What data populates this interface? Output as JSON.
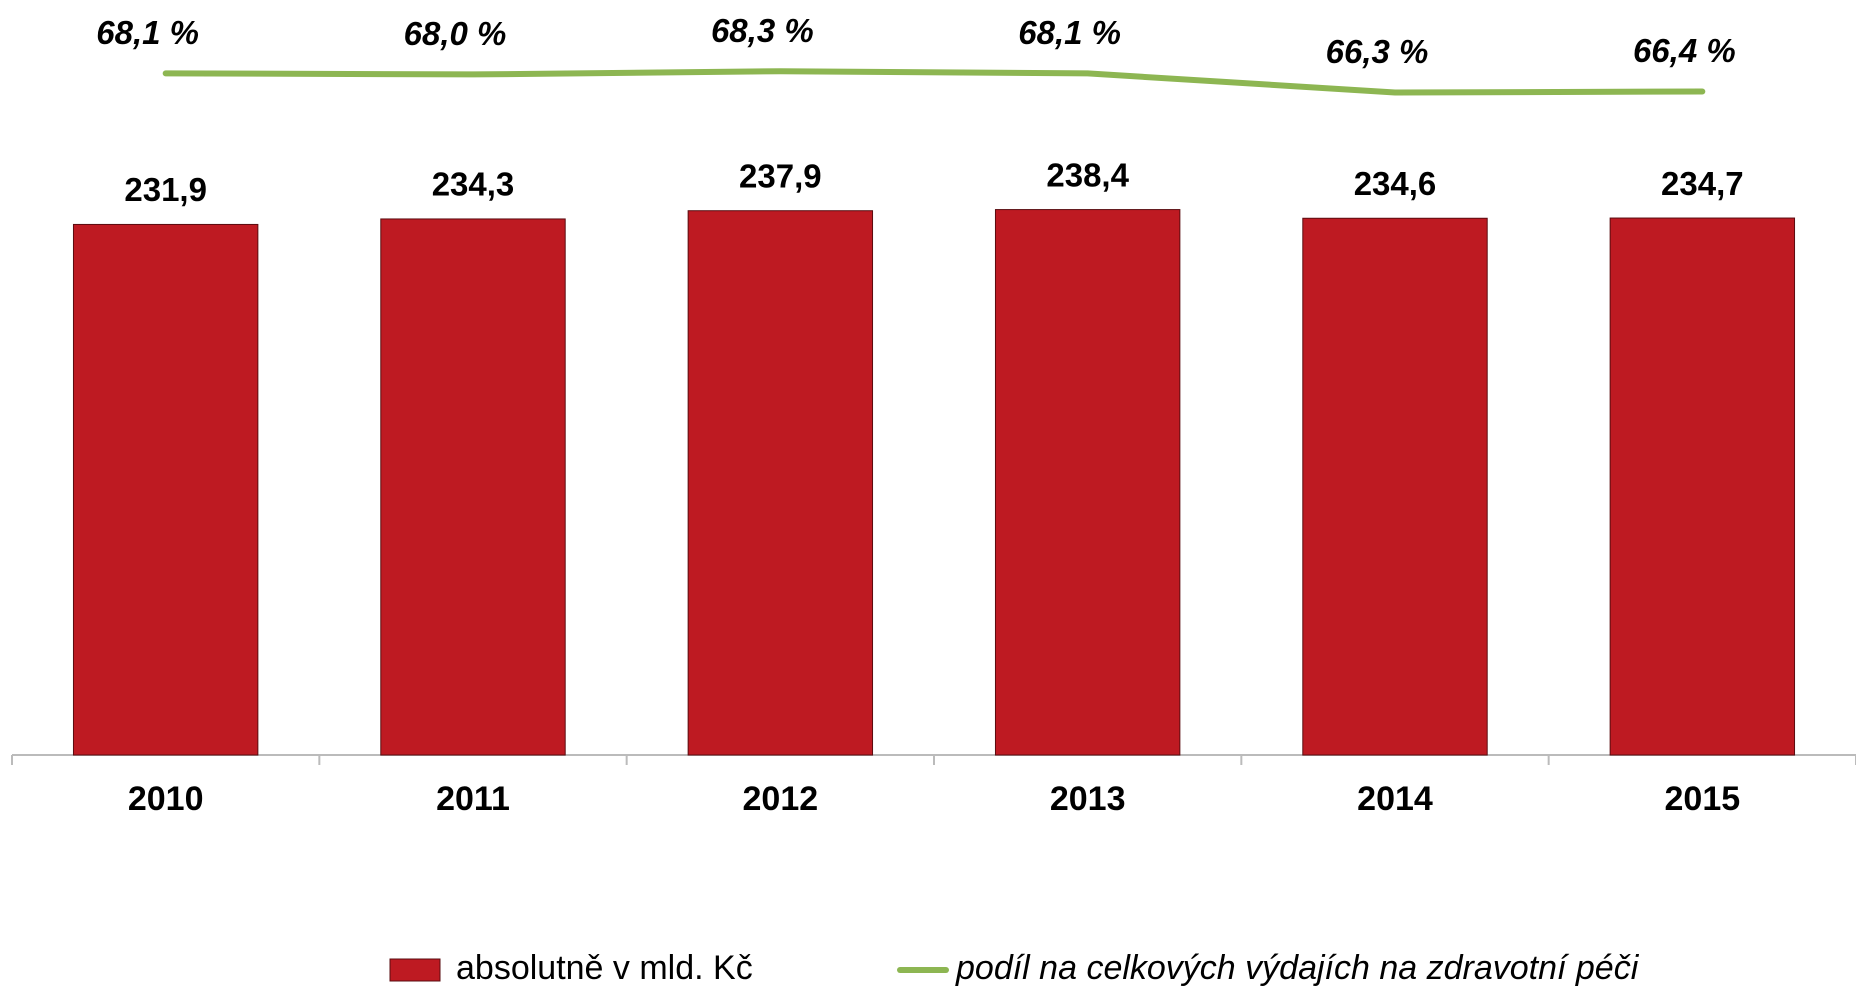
{
  "chart_data": {
    "type": "bar",
    "categories": [
      "2010",
      "2011",
      "2012",
      "2013",
      "2014",
      "2015"
    ],
    "series": [
      {
        "name": "absolutně v mld. Kč",
        "type": "bar",
        "color": "#be1a22",
        "values": [
          231.9,
          234.3,
          237.9,
          238.4,
          234.6,
          234.7
        ],
        "value_labels": [
          "231,9",
          "234,3",
          "237,9",
          "238,4",
          "234,6",
          "234,7"
        ]
      },
      {
        "name": "podíl na celkových výdajích na zdravotní péči",
        "type": "line",
        "axis": "y2",
        "color": "#8db652",
        "values": [
          68.1,
          68.0,
          68.3,
          68.1,
          66.3,
          66.4
        ],
        "value_labels": [
          "68,1 %",
          "68,0 %",
          "68,3 %",
          "68,1 %",
          "66,3 %",
          "66,4 %"
        ]
      }
    ],
    "ylim": [
      0,
      330
    ],
    "y2lim": [
      4,
      75
    ],
    "legend": "bottom"
  }
}
